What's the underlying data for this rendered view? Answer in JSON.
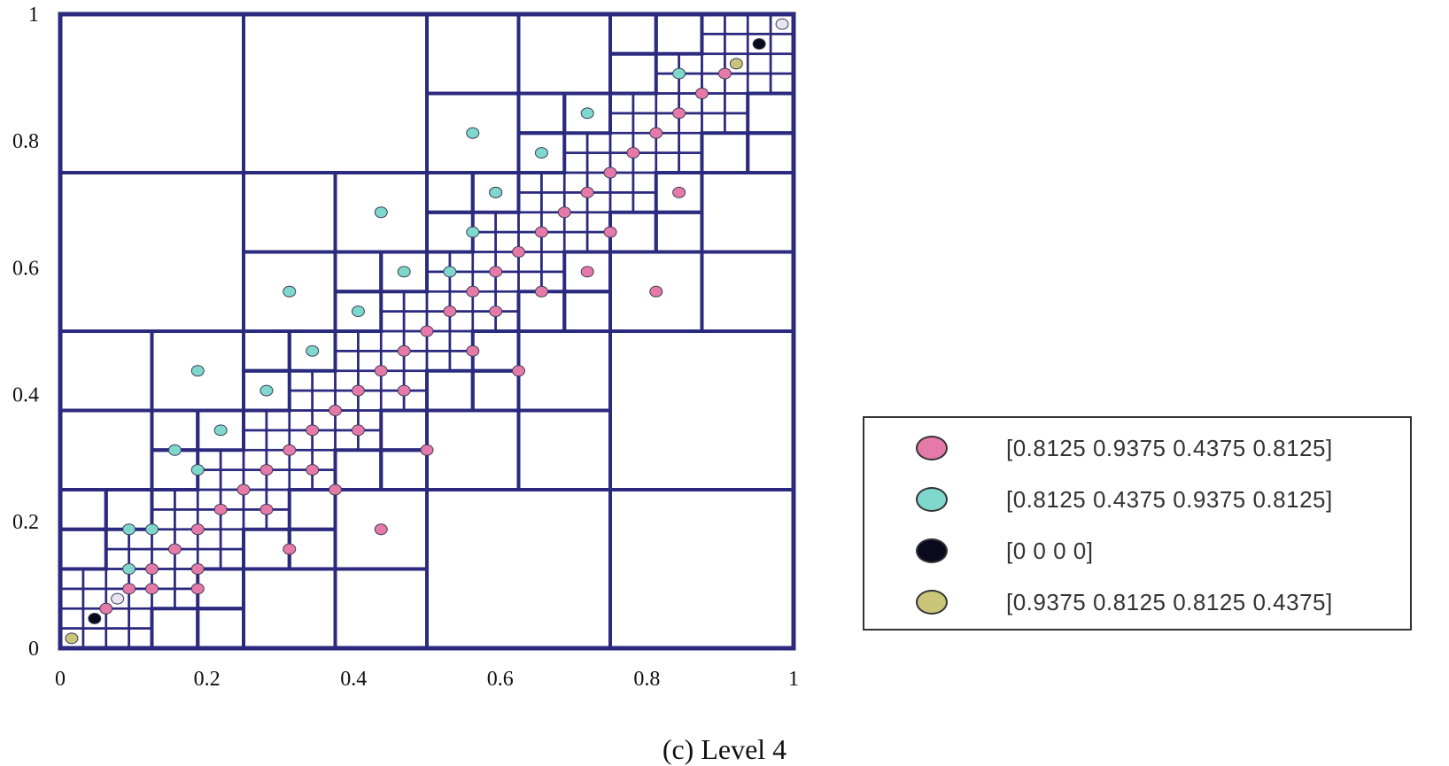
{
  "chart_data": {
    "type": "scatter",
    "title": "",
    "xlabel": "",
    "ylabel": "",
    "xlim": [
      0,
      1
    ],
    "ylim": [
      0,
      1
    ],
    "x_ticks": [
      "0",
      "0.2",
      "0.4",
      "0.6",
      "0.8",
      "1"
    ],
    "y_ticks": [
      "0",
      "0.2",
      "0.4",
      "0.6",
      "0.8",
      "1"
    ],
    "grid": "adaptive quadtree subdivision to level 4, refined along the main diagonal",
    "line_color": "#2b2a7e",
    "legend_position": "lower-right, outside plot",
    "series": [
      {
        "name": "[0.8125 0.9375 0.4375 0.8125]",
        "color": "#e57aa8",
        "points": [
          [
            0.0625,
            0.0625
          ],
          [
            0.0938,
            0.0938
          ],
          [
            0.125,
            0.125
          ],
          [
            0.1563,
            0.1563
          ],
          [
            0.1875,
            0.1875
          ],
          [
            0.2188,
            0.2188
          ],
          [
            0.25,
            0.25
          ],
          [
            0.2813,
            0.2813
          ],
          [
            0.3125,
            0.3125
          ],
          [
            0.3438,
            0.3438
          ],
          [
            0.375,
            0.375
          ],
          [
            0.4063,
            0.4063
          ],
          [
            0.4375,
            0.4375
          ],
          [
            0.4688,
            0.4688
          ],
          [
            0.5,
            0.5
          ],
          [
            0.5313,
            0.5313
          ],
          [
            0.5625,
            0.5625
          ],
          [
            0.5938,
            0.5938
          ],
          [
            0.625,
            0.625
          ],
          [
            0.6563,
            0.6563
          ],
          [
            0.6875,
            0.6875
          ],
          [
            0.7188,
            0.7188
          ],
          [
            0.75,
            0.75
          ],
          [
            0.7813,
            0.7813
          ],
          [
            0.8125,
            0.8125
          ],
          [
            0.8438,
            0.8438
          ],
          [
            0.875,
            0.875
          ],
          [
            0.9063,
            0.9063
          ],
          [
            0.125,
            0.0938
          ],
          [
            0.1875,
            0.125
          ],
          [
            0.2813,
            0.2188
          ],
          [
            0.3438,
            0.2813
          ],
          [
            0.4063,
            0.3438
          ],
          [
            0.4688,
            0.4063
          ],
          [
            0.5625,
            0.4688
          ],
          [
            0.6563,
            0.5625
          ],
          [
            0.75,
            0.6563
          ],
          [
            0.8438,
            0.7188
          ],
          [
            0.1875,
            0.0938
          ],
          [
            0.3125,
            0.1563
          ],
          [
            0.4375,
            0.1875
          ],
          [
            0.375,
            0.25
          ],
          [
            0.5,
            0.3125
          ],
          [
            0.625,
            0.4375
          ],
          [
            0.8125,
            0.5625
          ],
          [
            0.5938,
            0.5313
          ],
          [
            0.7188,
            0.5938
          ]
        ]
      },
      {
        "name": "[0.8125 0.4375 0.9375 0.8125]",
        "color": "#7fd8cc",
        "points": [
          [
            0.0938,
            0.125
          ],
          [
            0.125,
            0.1875
          ],
          [
            0.1875,
            0.2813
          ],
          [
            0.2188,
            0.3438
          ],
          [
            0.2813,
            0.4063
          ],
          [
            0.3438,
            0.4688
          ],
          [
            0.4063,
            0.5313
          ],
          [
            0.4688,
            0.5938
          ],
          [
            0.5625,
            0.6563
          ],
          [
            0.5938,
            0.7188
          ],
          [
            0.6563,
            0.7813
          ],
          [
            0.7188,
            0.8438
          ],
          [
            0.0938,
            0.1875
          ],
          [
            0.1563,
            0.3125
          ],
          [
            0.1875,
            0.4375
          ],
          [
            0.3125,
            0.5625
          ],
          [
            0.4375,
            0.6875
          ],
          [
            0.5625,
            0.8125
          ],
          [
            0.8438,
            0.9063
          ],
          [
            0.5313,
            0.5938
          ],
          [
            0.5938,
            0.7188
          ]
        ]
      },
      {
        "name": "[0 0 0 0]",
        "color": "#0a0a1e",
        "points": [
          [
            0.0469,
            0.0469
          ],
          [
            0.9531,
            0.9531
          ]
        ]
      },
      {
        "name": "[0.9375 0.8125 0.8125 0.4375]",
        "color": "#c9c67a",
        "points": [
          [
            0.0156,
            0.0156
          ],
          [
            0.9219,
            0.9219
          ]
        ]
      }
    ],
    "extra_points_light": [
      [
        0.0781,
        0.0781
      ],
      [
        0.9844,
        0.9844
      ]
    ]
  },
  "caption": "(c) Level 4"
}
